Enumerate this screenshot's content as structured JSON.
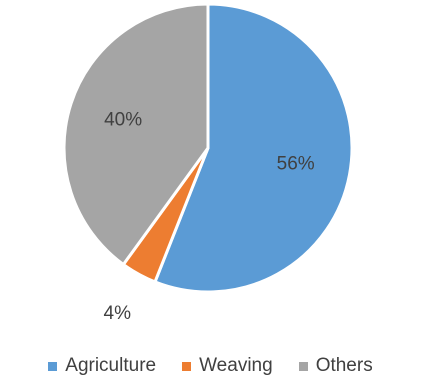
{
  "chart_data": {
    "type": "pie",
    "title": "",
    "series": [
      {
        "label": "Agriculture",
        "value": 56,
        "display": "56%",
        "color": "#5b9bd5"
      },
      {
        "label": "Weaving",
        "value": 4,
        "display": "4%",
        "color": "#ed7d31"
      },
      {
        "label": "Others",
        "value": 40,
        "display": "40%",
        "color": "#a5a5a5"
      }
    ],
    "start_angle": "12 o'clock",
    "direction": "clockwise",
    "legend_position": "bottom"
  }
}
